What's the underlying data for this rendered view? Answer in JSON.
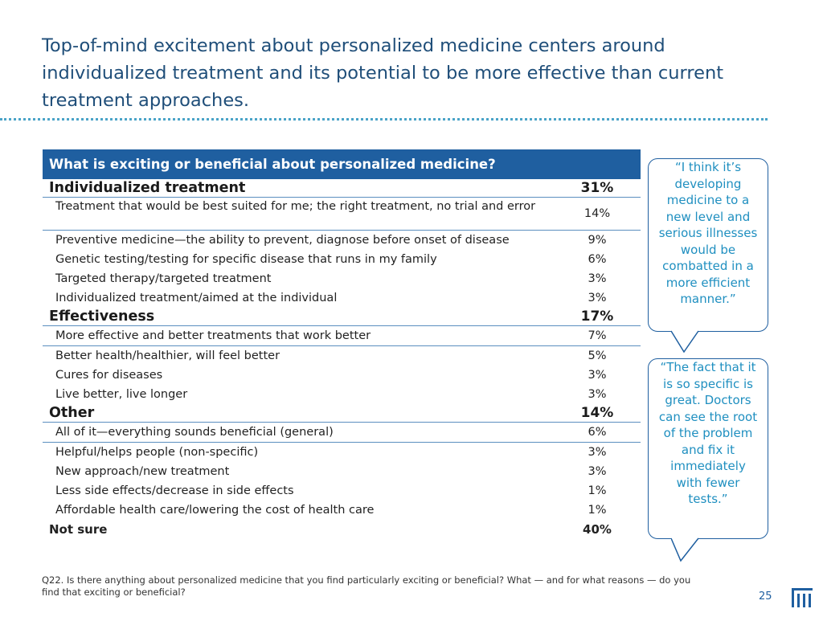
{
  "title": "Top-of-mind excitement about personalized medicine centers around individualized treatment and its potential to be more effective than current treatment approaches.",
  "table": {
    "header": "What is exciting or beneficial about personalized medicine?",
    "rows": [
      {
        "label": "Individualized treatment",
        "value": "31%"
      },
      {
        "label": "Treatment that would be best suited for me; the right treatment, no trial and error",
        "value": "14%"
      },
      {
        "label": "Preventive medicine—the ability to prevent, diagnose before onset of disease",
        "value": "9%"
      },
      {
        "label": "Genetic testing/testing for specific disease that runs in my family",
        "value": "6%"
      },
      {
        "label": "Targeted therapy/targeted treatment",
        "value": "3%"
      },
      {
        "label": "Individualized treatment/aimed at the individual",
        "value": "3%"
      },
      {
        "label": "Effectiveness",
        "value": "17%"
      },
      {
        "label": "More effective and better treatments that work better",
        "value": "7%"
      },
      {
        "label": "Better health/healthier, will feel better",
        "value": "5%"
      },
      {
        "label": "Cures for diseases",
        "value": "3%"
      },
      {
        "label": "Live better, live longer",
        "value": "3%"
      },
      {
        "label": "Other",
        "value": "14%"
      },
      {
        "label": "All of it—everything sounds beneficial (general)",
        "value": "6%"
      },
      {
        "label": "Helpful/helps people (non-specific)",
        "value": "3%"
      },
      {
        "label": "New approach/new treatment",
        "value": "3%"
      },
      {
        "label": "Less side effects/decrease in side effects",
        "value": "1%"
      },
      {
        "label": "Affordable health care/lowering the cost of health care",
        "value": "1%"
      },
      {
        "label": "Not sure",
        "value": "40%"
      }
    ]
  },
  "quotes": [
    "“I think it’s developing medicine to a new level and serious illnesses would be combatted in a more efficient manner.”",
    "“The fact that it is so specific is great. Doctors can see the root of the problem and fix it immediately with fewer tests.”"
  ],
  "footnote": "Q22. Is there anything about personalized medicine that you find particularly exciting or beneficial? What — and for what reasons — do you find that exciting or beneficial?",
  "page_number": "25",
  "logo_icon": "brand-logo-icon",
  "colors": {
    "accent": "#1f5fa0",
    "quote_text": "#1f8fc0",
    "title": "#1f4e79",
    "dots": "#4aa3c8"
  }
}
